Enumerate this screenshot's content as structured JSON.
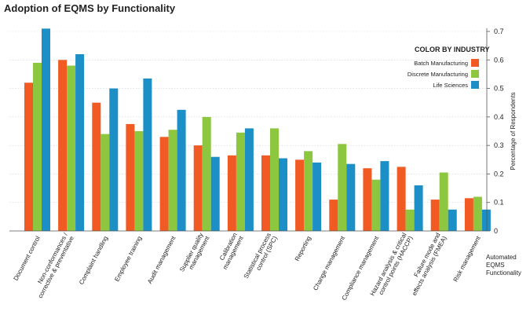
{
  "chart_data": {
    "type": "bar",
    "title": "Adoption of EQMS by Functionality",
    "xlabel": [
      "Automated",
      "EQMS",
      "Functionality"
    ],
    "ylabel": "Percentage of Respondents",
    "ylim": [
      0,
      0.7
    ],
    "yticks": [
      "0",
      "0.1",
      "0.2",
      "0.3",
      "0.4",
      "0.5",
      "0.6",
      "0.7"
    ],
    "grid": true,
    "legend": {
      "title": "COLOR BY INDUSTRY",
      "placement": "top-right"
    },
    "categories": [
      [
        "Document control"
      ],
      [
        "Non-conformances /",
        "corrective & preventative"
      ],
      [
        "Complaint handling"
      ],
      [
        "Employee training"
      ],
      [
        "Audit management"
      ],
      [
        "Supplier quality",
        "management"
      ],
      [
        "Calibration",
        "management"
      ],
      [
        "Statistical process",
        "control (SPC)"
      ],
      [
        "Reporting"
      ],
      [
        "Change management"
      ],
      [
        "Compliance management"
      ],
      [
        "Hazard analysis & critical",
        "control points (HACCP)"
      ],
      [
        "Failure mode and",
        "effects analysis (FMEA)"
      ],
      [
        "Risk management"
      ]
    ],
    "series": [
      {
        "name": "Batch Manufacturing",
        "color": "#f15a22",
        "values": [
          0.52,
          0.6,
          0.45,
          0.375,
          0.33,
          0.3,
          0.265,
          0.265,
          0.25,
          0.11,
          0.22,
          0.225,
          0.11,
          0.115
        ]
      },
      {
        "name": "Discrete Manufacturing",
        "color": "#8dc63f",
        "values": [
          0.59,
          0.58,
          0.34,
          0.35,
          0.355,
          0.4,
          0.345,
          0.36,
          0.28,
          0.305,
          0.18,
          0.075,
          0.205,
          0.12
        ]
      },
      {
        "name": "Life Sciences",
        "color": "#1b8fc6",
        "values": [
          0.71,
          0.62,
          0.5,
          0.535,
          0.425,
          0.26,
          0.36,
          0.255,
          0.24,
          0.235,
          0.245,
          0.16,
          0.075,
          0.075
        ]
      }
    ]
  }
}
